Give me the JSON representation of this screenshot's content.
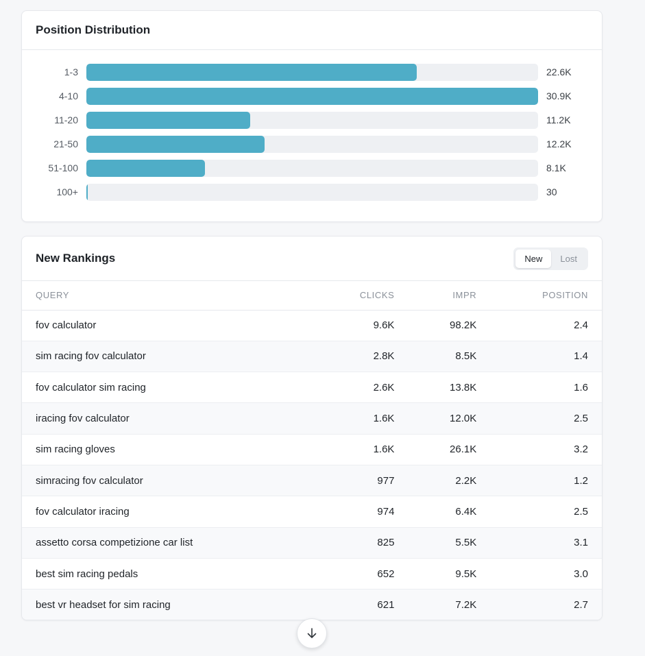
{
  "distribution": {
    "title": "Position Distribution",
    "accent": "#4fadc7",
    "rows": [
      {
        "label": "1-3",
        "value": "22.6K",
        "fraction": 0.731
      },
      {
        "label": "4-10",
        "value": "30.9K",
        "fraction": 1.0
      },
      {
        "label": "11-20",
        "value": "11.2K",
        "fraction": 0.362
      },
      {
        "label": "21-50",
        "value": "12.2K",
        "fraction": 0.394
      },
      {
        "label": "51-100",
        "value": "8.1K",
        "fraction": 0.262
      },
      {
        "label": "100+",
        "value": "30",
        "fraction": 0.001
      }
    ]
  },
  "rankings": {
    "title": "New Rankings",
    "toggle": {
      "new_label": "New",
      "lost_label": "Lost",
      "selected": "New"
    },
    "columns": {
      "query": "QUERY",
      "clicks": "CLICKS",
      "impr": "IMPR",
      "position": "POSITION"
    },
    "rows": [
      {
        "query": "fov calculator",
        "clicks": "9.6K",
        "impr": "98.2K",
        "position": "2.4"
      },
      {
        "query": "sim racing fov calculator",
        "clicks": "2.8K",
        "impr": "8.5K",
        "position": "1.4"
      },
      {
        "query": "fov calculator sim racing",
        "clicks": "2.6K",
        "impr": "13.8K",
        "position": "1.6"
      },
      {
        "query": "iracing fov calculator",
        "clicks": "1.6K",
        "impr": "12.0K",
        "position": "2.5"
      },
      {
        "query": "sim racing gloves",
        "clicks": "1.6K",
        "impr": "26.1K",
        "position": "3.2"
      },
      {
        "query": "simracing fov calculator",
        "clicks": "977",
        "impr": "2.2K",
        "position": "1.2"
      },
      {
        "query": "fov calculator iracing",
        "clicks": "974",
        "impr": "6.4K",
        "position": "2.5"
      },
      {
        "query": "assetto corsa competizione car list",
        "clicks": "825",
        "impr": "5.5K",
        "position": "3.1"
      },
      {
        "query": "best sim racing pedals",
        "clicks": "652",
        "impr": "9.5K",
        "position": "3.0"
      },
      {
        "query": "best vr headset for sim racing",
        "clicks": "621",
        "impr": "7.2K",
        "position": "2.7"
      }
    ]
  },
  "scroll_button": {
    "icon": "arrow-down-icon"
  }
}
